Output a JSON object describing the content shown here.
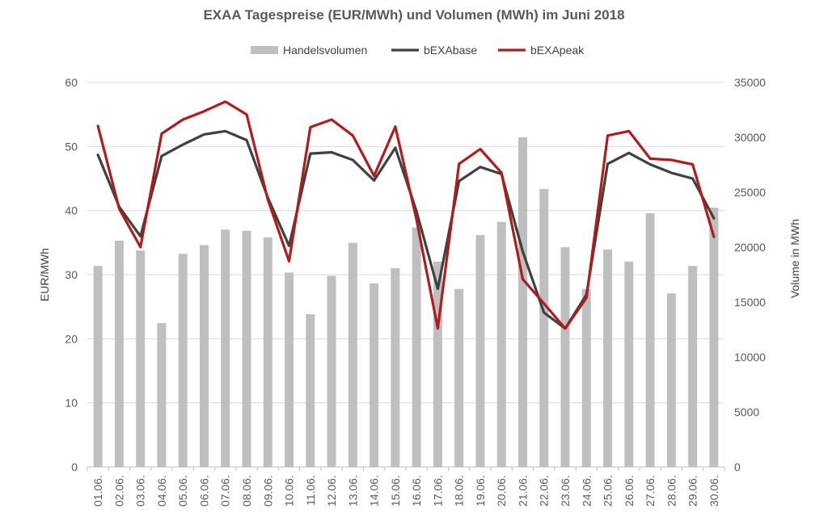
{
  "chart_data": {
    "type": "bar+line",
    "title": "EXAA Tagespreise (EUR/MWh) und Volumen (MWh) im Juni 2018",
    "ylabel_left": "EUR/MWh",
    "ylabel_right": "Volume in MWh",
    "ylim_left": [
      0,
      60
    ],
    "ylim_right": [
      0,
      35000
    ],
    "yticks_left": [
      "0",
      "10",
      "20",
      "30",
      "40",
      "50",
      "60"
    ],
    "yticks_right": [
      "0",
      "5000",
      "10000",
      "15000",
      "20000",
      "25000",
      "30000",
      "35000"
    ],
    "legend_position": "top",
    "grid": true,
    "categories": [
      "01.06.",
      "02.06.",
      "03.06.",
      "04.06.",
      "05.06.",
      "06.06.",
      "07.06.",
      "08.06.",
      "09.06.",
      "10.06.",
      "11.06.",
      "12.06.",
      "13.06.",
      "14.06.",
      "15.06.",
      "16.06.",
      "17.06.",
      "18.06.",
      "19.06.",
      "20.06.",
      "21.06.",
      "22.06.",
      "23.06.",
      "24.06.",
      "25.06.",
      "26.06.",
      "27.06.",
      "28.06.",
      "29.06.",
      "30.06."
    ],
    "series": [
      {
        "name": "Handelsvolumen",
        "type": "bar",
        "axis": "right",
        "color": "#bfbfbf",
        "values": [
          18300,
          20600,
          19700,
          13100,
          19400,
          20200,
          21600,
          21500,
          20900,
          17700,
          13900,
          17400,
          20400,
          16700,
          18100,
          21800,
          18700,
          16200,
          21100,
          22300,
          30000,
          25300,
          20000,
          16200,
          19800,
          18700,
          23100,
          15800,
          18300,
          23600
        ]
      },
      {
        "name": "bEXAbase",
        "type": "line",
        "axis": "left",
        "color": "#404040",
        "values": [
          48.7,
          40.6,
          36.0,
          48.5,
          50.3,
          51.9,
          52.4,
          51.0,
          42.0,
          34.5,
          48.9,
          49.1,
          47.9,
          44.7,
          49.8,
          39.9,
          27.8,
          44.6,
          46.8,
          45.7,
          33.6,
          24.1,
          21.6,
          26.9,
          47.3,
          49.0,
          47.2,
          45.9,
          45.0,
          38.8
        ]
      },
      {
        "name": "bEXApeak",
        "type": "line",
        "axis": "left",
        "color": "#b01c1c",
        "values": [
          53.2,
          40.3,
          34.3,
          52.0,
          54.2,
          55.5,
          57.0,
          55.0,
          41.7,
          32.1,
          53.0,
          54.2,
          51.7,
          45.4,
          53.1,
          38.6,
          21.6,
          47.3,
          49.6,
          45.9,
          29.3,
          25.5,
          21.6,
          26.4,
          51.7,
          52.4,
          48.1,
          47.9,
          47.2,
          35.9
        ]
      }
    ]
  }
}
